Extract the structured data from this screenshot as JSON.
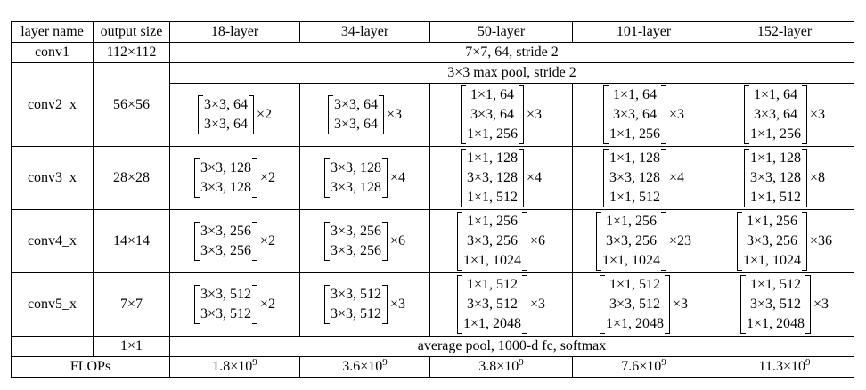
{
  "headers": [
    "layer name",
    "output size",
    "18-layer",
    "34-layer",
    "50-layer",
    "101-layer",
    "152-layer"
  ],
  "conv1": {
    "name": "conv1",
    "size": "112×112",
    "desc": "7×7, 64, stride 2"
  },
  "pool": {
    "desc": "3×3 max pool, stride 2"
  },
  "stages": [
    {
      "name": "conv2_x",
      "size": "56×56",
      "cells": [
        {
          "lines": [
            "3×3, 64",
            "3×3, 64"
          ],
          "mult": "×2"
        },
        {
          "lines": [
            "3×3, 64",
            "3×3, 64"
          ],
          "mult": "×3"
        },
        {
          "lines": [
            "1×1, 64",
            "3×3, 64",
            "1×1, 256"
          ],
          "mult": "×3"
        },
        {
          "lines": [
            "1×1, 64",
            "3×3, 64",
            "1×1, 256"
          ],
          "mult": "×3"
        },
        {
          "lines": [
            "1×1, 64",
            "3×3, 64",
            "1×1, 256"
          ],
          "mult": "×3"
        }
      ]
    },
    {
      "name": "conv3_x",
      "size": "28×28",
      "cells": [
        {
          "lines": [
            "3×3, 128",
            "3×3, 128"
          ],
          "mult": "×2"
        },
        {
          "lines": [
            "3×3, 128",
            "3×3, 128"
          ],
          "mult": "×4"
        },
        {
          "lines": [
            "1×1, 128",
            "3×3, 128",
            "1×1, 512"
          ],
          "mult": "×4"
        },
        {
          "lines": [
            "1×1, 128",
            "3×3, 128",
            "1×1, 512"
          ],
          "mult": "×4"
        },
        {
          "lines": [
            "1×1, 128",
            "3×3, 128",
            "1×1, 512"
          ],
          "mult": "×8"
        }
      ]
    },
    {
      "name": "conv4_x",
      "size": "14×14",
      "cells": [
        {
          "lines": [
            "3×3, 256",
            "3×3, 256"
          ],
          "mult": "×2"
        },
        {
          "lines": [
            "3×3, 256",
            "3×3, 256"
          ],
          "mult": "×6"
        },
        {
          "lines": [
            "1×1, 256",
            "3×3, 256",
            "1×1, 1024"
          ],
          "mult": "×6"
        },
        {
          "lines": [
            "1×1, 256",
            "3×3, 256",
            "1×1, 1024"
          ],
          "mult": "×23"
        },
        {
          "lines": [
            "1×1, 256",
            "3×3, 256",
            "1×1, 1024"
          ],
          "mult": "×36"
        }
      ]
    },
    {
      "name": "conv5_x",
      "size": "7×7",
      "cells": [
        {
          "lines": [
            "3×3, 512",
            "3×3, 512"
          ],
          "mult": "×2"
        },
        {
          "lines": [
            "3×3, 512",
            "3×3, 512"
          ],
          "mult": "×3"
        },
        {
          "lines": [
            "1×1, 512",
            "3×3, 512",
            "1×1, 2048"
          ],
          "mult": "×3"
        },
        {
          "lines": [
            "1×1, 512",
            "3×3, 512",
            "1×1, 2048"
          ],
          "mult": "×3"
        },
        {
          "lines": [
            "1×1, 512",
            "3×3, 512",
            "1×1, 2048"
          ],
          "mult": "×3"
        }
      ]
    }
  ],
  "final": {
    "size": "1×1",
    "desc": "average pool, 1000-d fc, softmax"
  },
  "flops": {
    "label": "FLOPs",
    "values": [
      {
        "base": "1.8×10",
        "exp": "9"
      },
      {
        "base": "3.6×10",
        "exp": "9"
      },
      {
        "base": "3.8×10",
        "exp": "9"
      },
      {
        "base": "7.6×10",
        "exp": "9"
      },
      {
        "base": "11.3×10",
        "exp": "9"
      }
    ]
  }
}
